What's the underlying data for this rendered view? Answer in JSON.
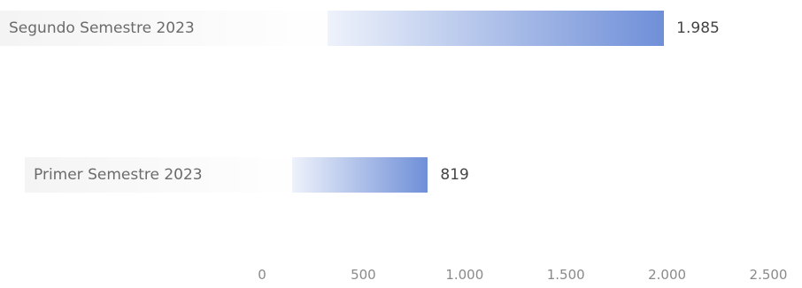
{
  "chart_data": {
    "type": "bar",
    "orientation": "horizontal",
    "categories": [
      "Segundo Semestre 2023",
      "Primer Semestre 2023"
    ],
    "values": [
      1985,
      819
    ],
    "value_labels": [
      "1.985",
      "819"
    ],
    "xlim": [
      0,
      2500
    ],
    "xticks": [
      0,
      500,
      1000,
      1500,
      2000,
      2500
    ],
    "xtick_labels": [
      "0",
      "500",
      "1.000",
      "1.500",
      "2.000",
      "2.500"
    ],
    "grid": false,
    "bar_color_start": "#eef2fb",
    "bar_color_end": "#6f8fd8"
  }
}
